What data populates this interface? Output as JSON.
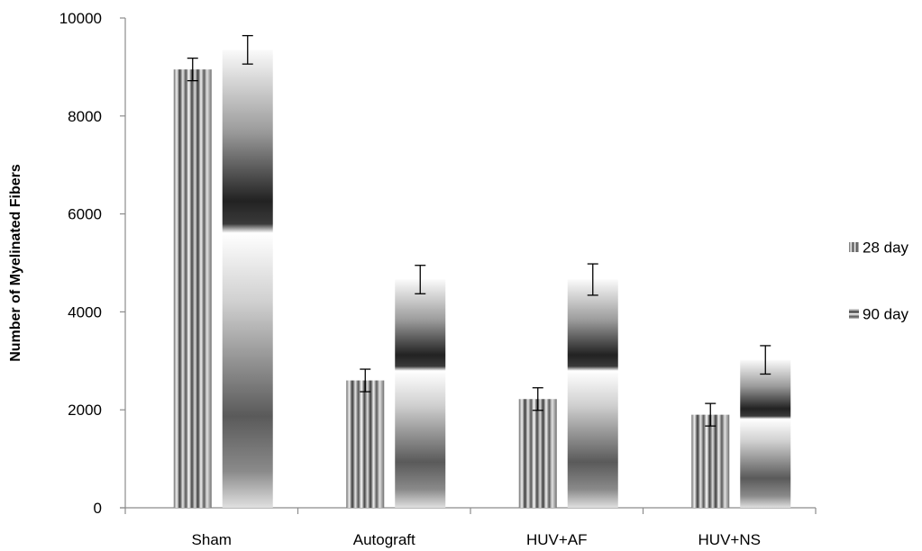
{
  "chart_data": {
    "type": "bar",
    "title": "",
    "xlabel": "",
    "ylabel": "Number of Myelinated Fibers",
    "ylim": [
      0,
      10000
    ],
    "yticks": [
      0,
      2000,
      4000,
      6000,
      8000,
      10000
    ],
    "yticks_labels": [
      "0",
      "2000",
      "4000",
      "6000",
      "8000",
      "10000"
    ],
    "categories": [
      "Sham",
      "Autograft",
      "HUV+AF",
      "HUV+NS"
    ],
    "series": [
      {
        "name": "28 day",
        "values": [
          8950,
          2600,
          2220,
          1900
        ],
        "errors": [
          230,
          230,
          230,
          230
        ],
        "pattern": "vertical-stripes"
      },
      {
        "name": "90 day",
        "values": [
          9350,
          4660,
          4660,
          3020
        ],
        "errors": [
          290,
          290,
          320,
          290
        ],
        "pattern": "horizontal-gradient"
      }
    ],
    "grid": false,
    "legend_position": "right"
  }
}
